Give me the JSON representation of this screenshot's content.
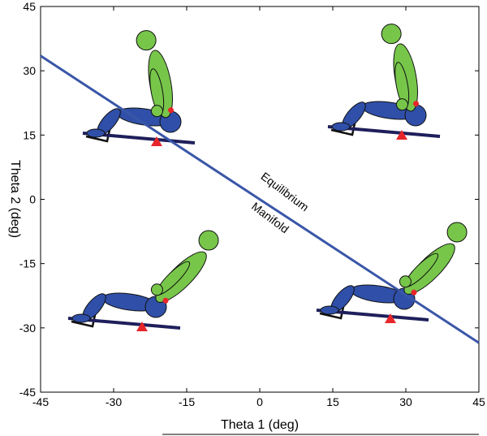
{
  "chart_data": {
    "type": "line",
    "x": [
      -45,
      45
    ],
    "series": [
      {
        "color": "#3a56a8",
        "values": [
          33.5,
          -33.5
        ]
      }
    ],
    "xlim": [
      -45,
      45
    ],
    "xticks": [
      -45,
      -30,
      -15,
      0,
      15,
      30,
      45
    ],
    "ylim": [
      -45,
      45
    ],
    "yticks": [
      -45,
      -30,
      -15,
      0,
      15,
      30,
      45
    ],
    "xlabel": "Theta 1 (deg)",
    "ylabel": "Theta 2 (deg)",
    "annotations": [
      "Equilibrium",
      "Manifold"
    ]
  }
}
